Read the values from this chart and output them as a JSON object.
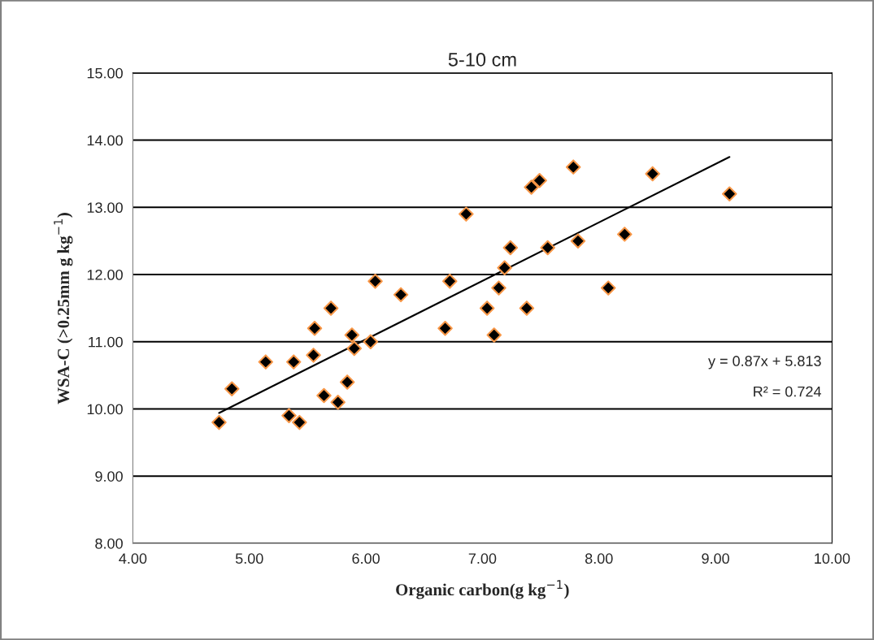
{
  "chart_data": {
    "type": "scatter",
    "title": "5-10 cm",
    "xlabel": "Organic carbon(g kg$^{−1}$)",
    "ylabel": "WSA-C (>0.25mm g kg$^{−1}$)",
    "series": [
      {
        "color": "#000000",
        "marker": "diamond",
        "x": [
          6.86,
          6.08,
          6.72,
          6.3,
          5.7,
          5.56,
          6.68,
          5.88,
          6.04,
          5.9,
          5.55,
          5.14,
          5.38,
          7.78,
          7.42,
          7.49,
          8.46,
          9.12,
          8.22,
          7.82,
          7.24,
          7.56,
          7.19,
          7.14,
          8.08,
          7.04,
          7.38,
          7.1,
          4.85,
          4.74,
          5.34,
          5.43,
          5.64,
          5.76,
          5.84
        ],
        "values": [
          12.9,
          11.9,
          11.9,
          11.7,
          11.5,
          11.2,
          11.2,
          11.1,
          11.0,
          10.9,
          10.8,
          10.7,
          10.7,
          13.6,
          13.3,
          13.4,
          13.5,
          13.2,
          12.6,
          12.5,
          12.4,
          12.4,
          12.1,
          11.8,
          11.8,
          11.5,
          11.5,
          11.1,
          10.3,
          9.8,
          9.9,
          9.8,
          10.2,
          10.1,
          10.4
        ]
      },
      {
        "type": "line",
        "color": "#000000",
        "marker": "none",
        "x": [
          4.74,
          9.12
        ],
        "values": [
          9.94,
          13.75
        ]
      }
    ],
    "annotations": [
      "y = 0.87x + 5.813",
      "R² = 0.724"
    ],
    "xlim": [
      4,
      10
    ],
    "ylim": [
      8,
      15
    ],
    "xticks": [
      {
        "value": 4,
        "label": "4.00"
      },
      {
        "value": 5,
        "label": "5.00"
      },
      {
        "value": 6,
        "label": "6.00"
      },
      {
        "value": 7,
        "label": "7.00"
      },
      {
        "value": 8,
        "label": "8.00"
      },
      {
        "value": 9,
        "label": "9.00"
      },
      {
        "value": 10,
        "label": "10.00"
      }
    ],
    "yticks": [
      {
        "value": 8,
        "label": "8.00"
      },
      {
        "value": 9,
        "label": "9.00"
      },
      {
        "value": 10,
        "label": "10.00"
      },
      {
        "value": 11,
        "label": "11.00"
      },
      {
        "value": 12,
        "label": "12.00"
      },
      {
        "value": 13,
        "label": "13.00"
      },
      {
        "value": 14,
        "label": "14.00"
      },
      {
        "value": 15,
        "label": "15.00"
      }
    ],
    "grid": "y"
  }
}
